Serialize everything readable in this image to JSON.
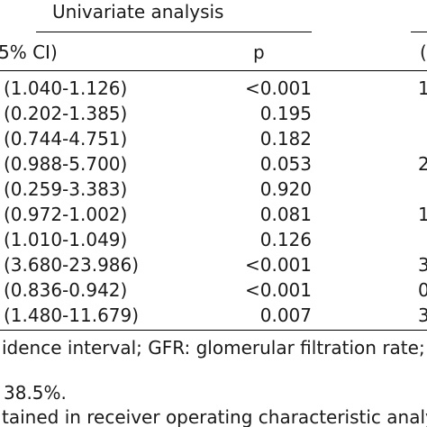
{
  "table": {
    "section_title": "Univariate analysis",
    "columns": {
      "ci": "5% CI)",
      "p": "p",
      "next": "("
    },
    "rows": [
      {
        "ci": "(1.040-1.126)",
        "p": "<0.001",
        "next": "1"
      },
      {
        "ci": "(0.202-1.385)",
        "p": "0.195",
        "next": ""
      },
      {
        "ci": "(0.744-4.751)",
        "p": "0.182",
        "next": ""
      },
      {
        "ci": "(0.988-5.700)",
        "p": "0.053",
        "next": "2"
      },
      {
        "ci": "(0.259-3.383)",
        "p": "0.920",
        "next": ""
      },
      {
        "ci": "(0.972-1.002)",
        "p": "0.081",
        "next": "1"
      },
      {
        "ci": "(1.010-1.049)",
        "p": "0.126",
        "next": ""
      },
      {
        "ci": "(3.680-23.986)",
        "p": "<0.001",
        "next": "3"
      },
      {
        "ci": "(0.836-0.942)",
        "p": "<0.001",
        "next": "0"
      },
      {
        "ci": "(1.480-11.679)",
        "p": "0.007",
        "next": "3"
      }
    ]
  },
  "footnotes": {
    "line1": "idence interval; GFR: glomerular filtration rate; LVE",
    "line2": "38.5%.",
    "line3": "tained in receiver operating characteristic analysis."
  }
}
